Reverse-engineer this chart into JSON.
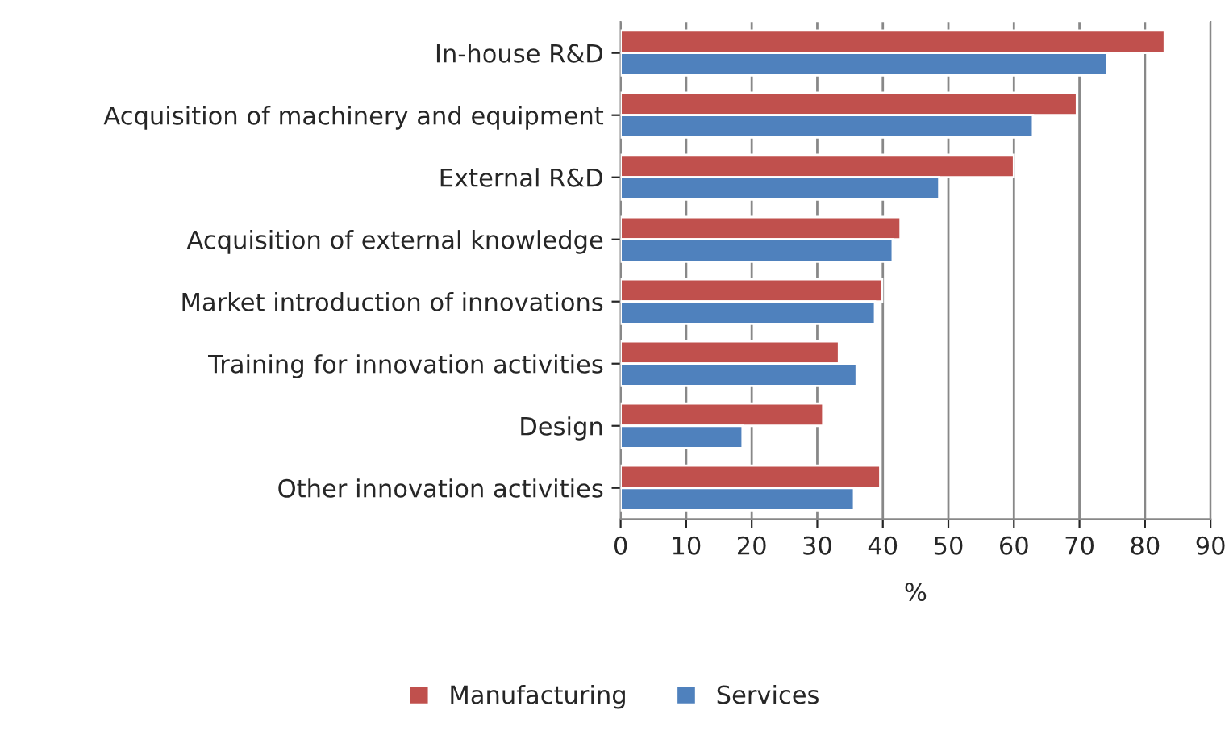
{
  "chart_data": {
    "type": "bar",
    "orientation": "horizontal",
    "xlabel": "%",
    "categories": [
      "In-house R&D",
      "Acquisition of machinery and equipment",
      "External R&D",
      "Acquisition of external knowledge",
      "Market introduction of innovations",
      "Training for innovation activities",
      "Design",
      "Other innovation activities"
    ],
    "series": [
      {
        "name": "Manufacturing",
        "color": "#c0504d",
        "values": [
          83.0,
          69.6,
          60.0,
          42.7,
          39.9,
          33.3,
          30.9,
          39.6
        ]
      },
      {
        "name": "Services",
        "color": "#4f81bd",
        "values": [
          74.2,
          62.9,
          48.6,
          41.5,
          38.8,
          36.0,
          18.6,
          35.6
        ]
      }
    ],
    "xlim": [
      0,
      90
    ],
    "xticks": [
      0,
      10,
      20,
      30,
      40,
      50,
      60,
      70,
      80,
      90
    ],
    "grid": "x",
    "legend": "bottom"
  }
}
